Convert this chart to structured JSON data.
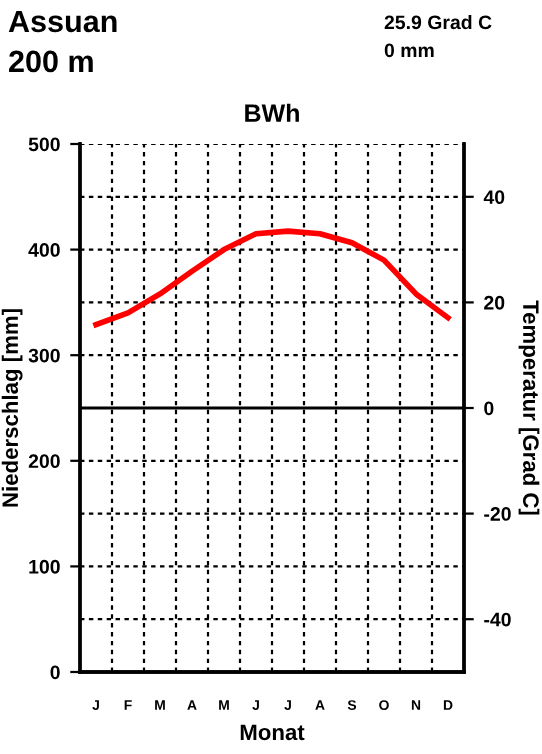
{
  "chart_data": {
    "type": "line",
    "title": "BWh",
    "annotations": [
      "Assuan",
      "200 m",
      "25.9 Grad C",
      "0 mm"
    ],
    "xlabel": "Monat",
    "ylabel": "Niederschlag [mm]",
    "y2label": "Temperatur [Grad C]",
    "categories": [
      "J",
      "F",
      "M",
      "A",
      "M",
      "J",
      "J",
      "A",
      "S",
      "O",
      "N",
      "D"
    ],
    "series": [
      {
        "color": "#ff0000",
        "axis": "y2",
        "values": [
          15.8,
          18.0,
          21.6,
          25.9,
          30.0,
          33.0,
          33.5,
          33.0,
          31.3,
          28.0,
          21.6,
          17.1
        ]
      }
    ],
    "ylim": [
      0,
      500
    ],
    "yticks": [
      0,
      100,
      200,
      300,
      400,
      500
    ],
    "y2lim": [
      -50,
      50
    ],
    "y2ticks": [
      -40,
      -20,
      0,
      20,
      40
    ],
    "ref_lines": [
      {
        "axis": "y2",
        "value": 0,
        "color": "#000000",
        "line_style": "solid"
      }
    ],
    "grid": true,
    "legend": false,
    "marker": "none",
    "line_style": "solid"
  }
}
